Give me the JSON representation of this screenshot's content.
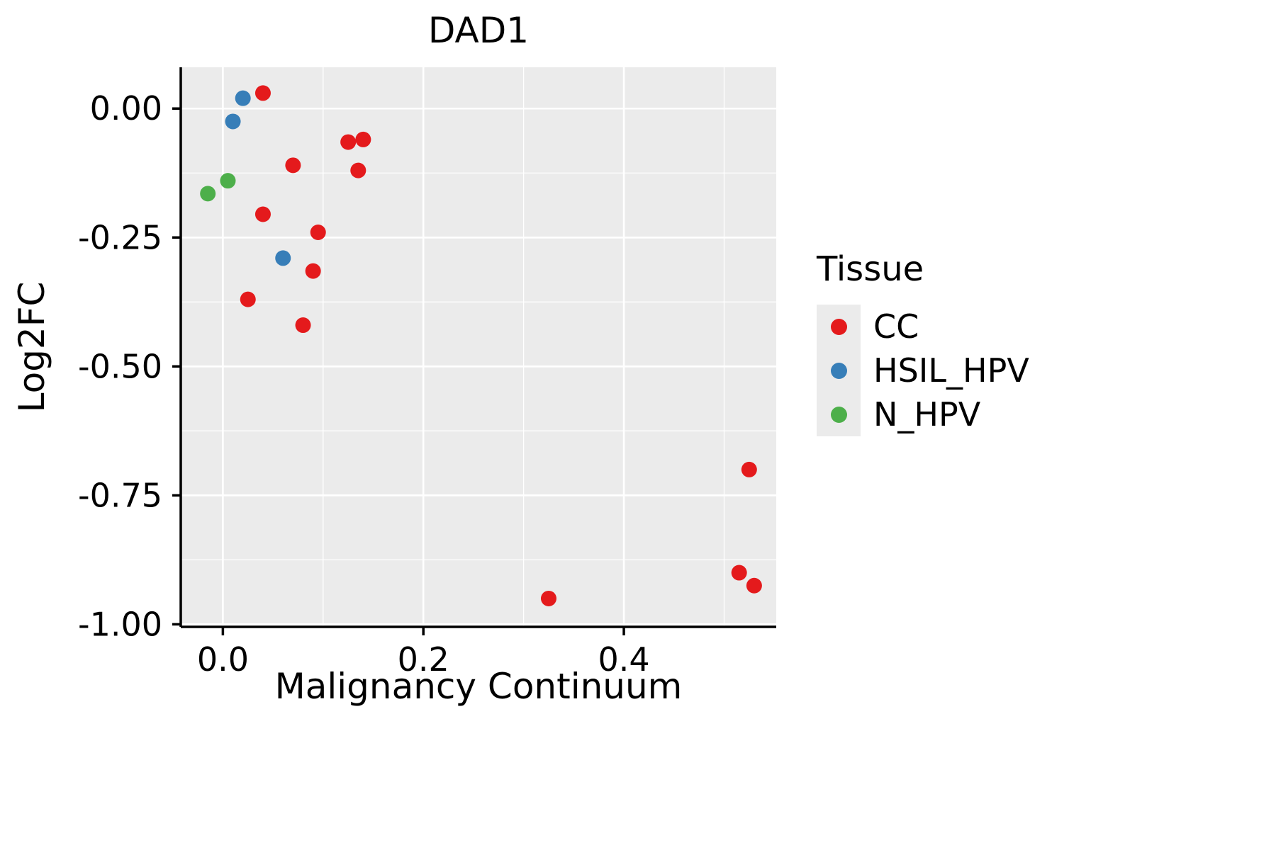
{
  "chart_data": {
    "type": "scatter",
    "title": "DAD1",
    "xlabel": "Malignancy Continuum",
    "ylabel": "Log2FC",
    "xlim": [
      -0.042,
      0.552
    ],
    "ylim": [
      -1.005,
      0.08
    ],
    "x_ticks": [
      0.0,
      0.2,
      0.4
    ],
    "x_tick_labels": [
      "0.0",
      "0.2",
      "0.4"
    ],
    "y_ticks": [
      0.0,
      -0.25,
      -0.5,
      -0.75,
      -1.0
    ],
    "y_tick_labels": [
      "0.00",
      "-0.25",
      "-0.50",
      "-0.75",
      "-1.00"
    ],
    "x_minor_ticks": [
      0.1,
      0.3,
      0.5
    ],
    "y_minor_ticks": [
      -0.125,
      -0.375,
      -0.625,
      -0.875
    ],
    "grid": true,
    "panel_bg": "#EBEBEB",
    "grid_color": "#FFFFFF",
    "axis_color": "#000000",
    "point_radius": 11,
    "legend": {
      "title": "Tissue",
      "position": "right",
      "items": [
        {
          "label": "CC",
          "color": "#E41A1C"
        },
        {
          "label": "HSIL_HPV",
          "color": "#377EB8"
        },
        {
          "label": "N_HPV",
          "color": "#4DAF4A"
        }
      ]
    },
    "series": [
      {
        "name": "CC",
        "color": "#E41A1C",
        "points": [
          [
            0.04,
            0.03
          ],
          [
            0.125,
            -0.065
          ],
          [
            0.14,
            -0.06
          ],
          [
            0.07,
            -0.11
          ],
          [
            0.135,
            -0.12
          ],
          [
            0.04,
            -0.205
          ],
          [
            0.095,
            -0.24
          ],
          [
            0.09,
            -0.315
          ],
          [
            0.025,
            -0.37
          ],
          [
            0.08,
            -0.42
          ],
          [
            0.525,
            -0.7
          ],
          [
            0.515,
            -0.9
          ],
          [
            0.53,
            -0.925
          ],
          [
            0.325,
            -0.95
          ]
        ]
      },
      {
        "name": "HSIL_HPV",
        "color": "#377EB8",
        "points": [
          [
            0.02,
            0.02
          ],
          [
            0.01,
            -0.025
          ],
          [
            0.06,
            -0.29
          ]
        ]
      },
      {
        "name": "N_HPV",
        "color": "#4DAF4A",
        "points": [
          [
            0.005,
            -0.14
          ],
          [
            -0.015,
            -0.165
          ]
        ]
      }
    ]
  }
}
